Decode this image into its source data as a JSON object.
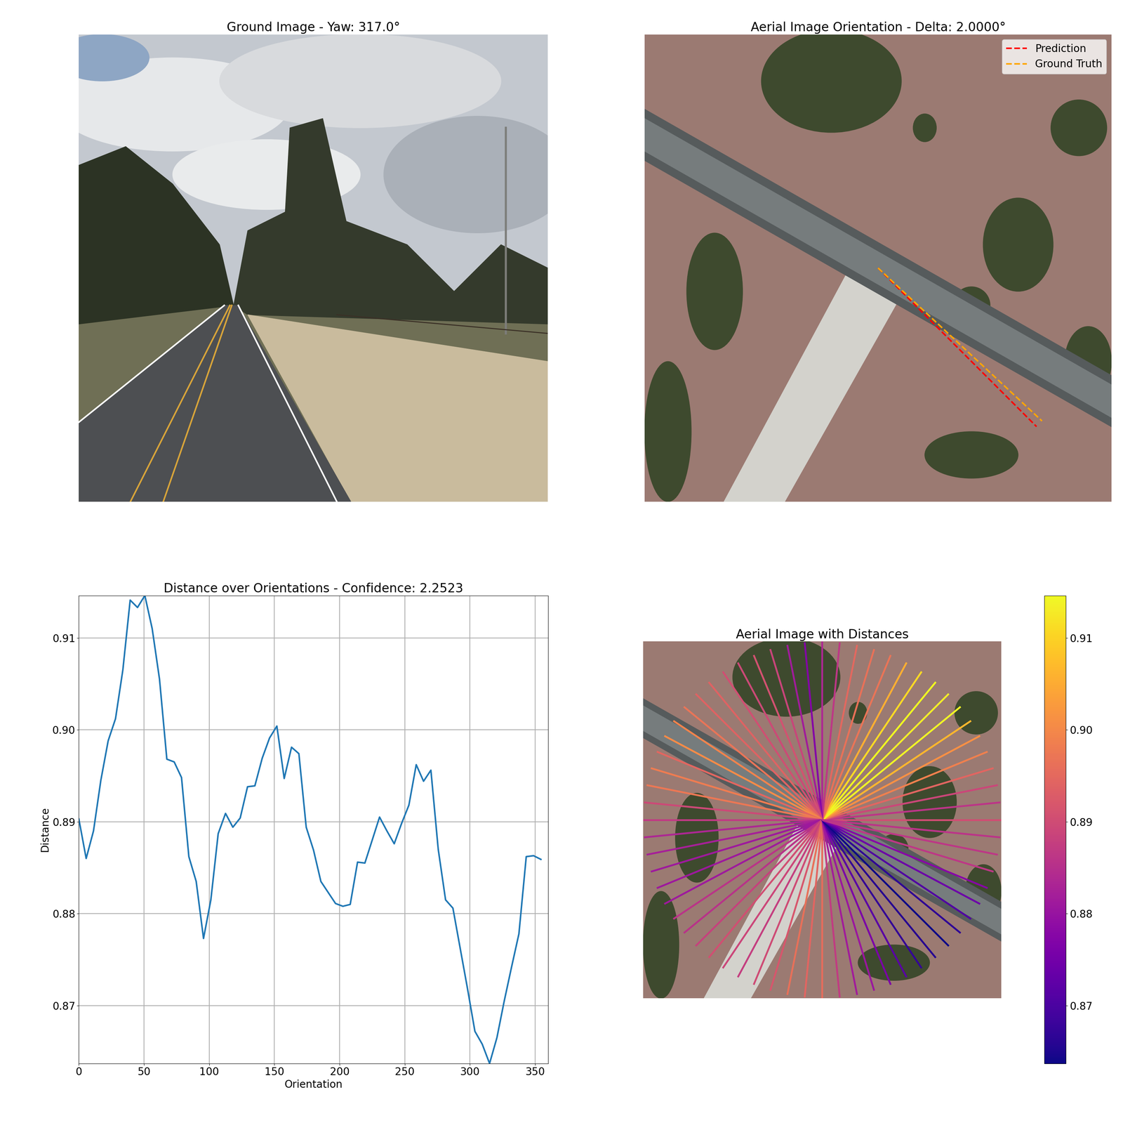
{
  "chart_data": [
    {
      "type": "image",
      "title": "Ground Image - Yaw: 317.0°"
    },
    {
      "type": "image",
      "title": "Aerial Image Orientation - Delta: 2.0000°",
      "legend": "upper right",
      "series": [
        {
          "name": "Prediction",
          "color": "red",
          "line_style": "dashed",
          "values": [
            315
          ]
        },
        {
          "name": "Ground Truth",
          "color": "orange",
          "line_style": "dashed",
          "values": [
            317
          ]
        }
      ]
    },
    {
      "type": "line",
      "title": "Distance over Orientations - Confidence: 2.2523",
      "x_label": "Orientation",
      "y_label": "Distance",
      "color": "#1f77b4",
      "grid": true,
      "x": [
        0,
        5.625,
        11.25,
        16.875,
        22.5,
        28.125,
        33.75,
        39.375,
        45,
        50.625,
        56.25,
        61.875,
        67.5,
        73.125,
        78.75,
        84.375,
        90,
        95.625,
        101.25,
        106.875,
        112.5,
        118.125,
        123.75,
        129.375,
        135,
        140.625,
        146.25,
        151.875,
        157.5,
        163.125,
        168.75,
        174.375,
        180,
        185.625,
        191.25,
        196.875,
        202.5,
        208.125,
        213.75,
        219.375,
        225,
        230.625,
        236.25,
        241.875,
        247.5,
        253.125,
        258.75,
        264.375,
        270,
        275.625,
        281.25,
        286.875,
        292.5,
        298.125,
        303.75,
        309.375,
        315,
        320.625,
        326.25,
        331.875,
        337.5,
        343.125,
        348.75,
        354.375
      ],
      "values": [
        0.8903,
        0.886,
        0.889,
        0.8945,
        0.8988,
        0.9012,
        0.9065,
        0.9141,
        0.9133,
        0.9146,
        0.911,
        0.9055,
        0.8968,
        0.8965,
        0.8948,
        0.8862,
        0.8835,
        0.8773,
        0.8815,
        0.8887,
        0.8909,
        0.8894,
        0.8904,
        0.8938,
        0.8939,
        0.8969,
        0.8991,
        0.9004,
        0.8947,
        0.8981,
        0.8974,
        0.8894,
        0.8869,
        0.8835,
        0.8823,
        0.8811,
        0.8808,
        0.881,
        0.8856,
        0.8855,
        0.888,
        0.8905,
        0.889,
        0.8876,
        0.8898,
        0.8918,
        0.8962,
        0.8944,
        0.8956,
        0.887,
        0.8815,
        0.8806,
        0.8762,
        0.8718,
        0.8672,
        0.8658,
        0.8637,
        0.8665,
        0.8705,
        0.8742,
        0.8778,
        0.8862,
        0.8863,
        0.8859
      ],
      "xlim": [
        0,
        360
      ],
      "ylim": [
        0.8637,
        0.9146
      ],
      "xticks": [
        0,
        50,
        100,
        150,
        200,
        250,
        300,
        350
      ],
      "yticks": [
        0.87,
        0.88,
        0.89,
        {
          "value": 0.9,
          "label": "0.90"
        },
        0.91
      ]
    },
    {
      "type": "rays",
      "title": "Aerial Image with Distances",
      "color": "plasma",
      "x": [
        0,
        5.625,
        11.25,
        16.875,
        22.5,
        28.125,
        33.75,
        39.375,
        45,
        50.625,
        56.25,
        61.875,
        67.5,
        73.125,
        78.75,
        84.375,
        90,
        95.625,
        101.25,
        106.875,
        112.5,
        118.125,
        123.75,
        129.375,
        135,
        140.625,
        146.25,
        151.875,
        157.5,
        163.125,
        168.75,
        174.375,
        180,
        185.625,
        191.25,
        196.875,
        202.5,
        208.125,
        213.75,
        219.375,
        225,
        230.625,
        236.25,
        241.875,
        247.5,
        253.125,
        258.75,
        264.375,
        270,
        275.625,
        281.25,
        286.875,
        292.5,
        298.125,
        303.75,
        309.375,
        315,
        320.625,
        326.25,
        331.875,
        337.5,
        343.125,
        348.75,
        354.375
      ],
      "values": [
        0.8903,
        0.886,
        0.889,
        0.8945,
        0.8988,
        0.9012,
        0.9065,
        0.9141,
        0.9133,
        0.9146,
        0.911,
        0.9055,
        0.8968,
        0.8965,
        0.8948,
        0.8862,
        0.8835,
        0.8773,
        0.8815,
        0.8887,
        0.8909,
        0.8894,
        0.8904,
        0.8938,
        0.8939,
        0.8969,
        0.8991,
        0.9004,
        0.8947,
        0.8981,
        0.8974,
        0.8894,
        0.8869,
        0.8835,
        0.8823,
        0.8811,
        0.8808,
        0.881,
        0.8856,
        0.8855,
        0.888,
        0.8905,
        0.889,
        0.8876,
        0.8898,
        0.8918,
        0.8962,
        0.8944,
        0.8956,
        0.887,
        0.8815,
        0.8806,
        0.8762,
        0.8718,
        0.8672,
        0.8658,
        0.8637,
        0.8665,
        0.8705,
        0.8742,
        0.8778,
        0.8862,
        0.8863,
        0.8859
      ],
      "color_range": [
        0.8637,
        0.9146
      ],
      "color_ticks": [
        0.87,
        0.88,
        0.89,
        {
          "value": 0.9,
          "label": "0.90"
        },
        0.91
      ]
    }
  ]
}
